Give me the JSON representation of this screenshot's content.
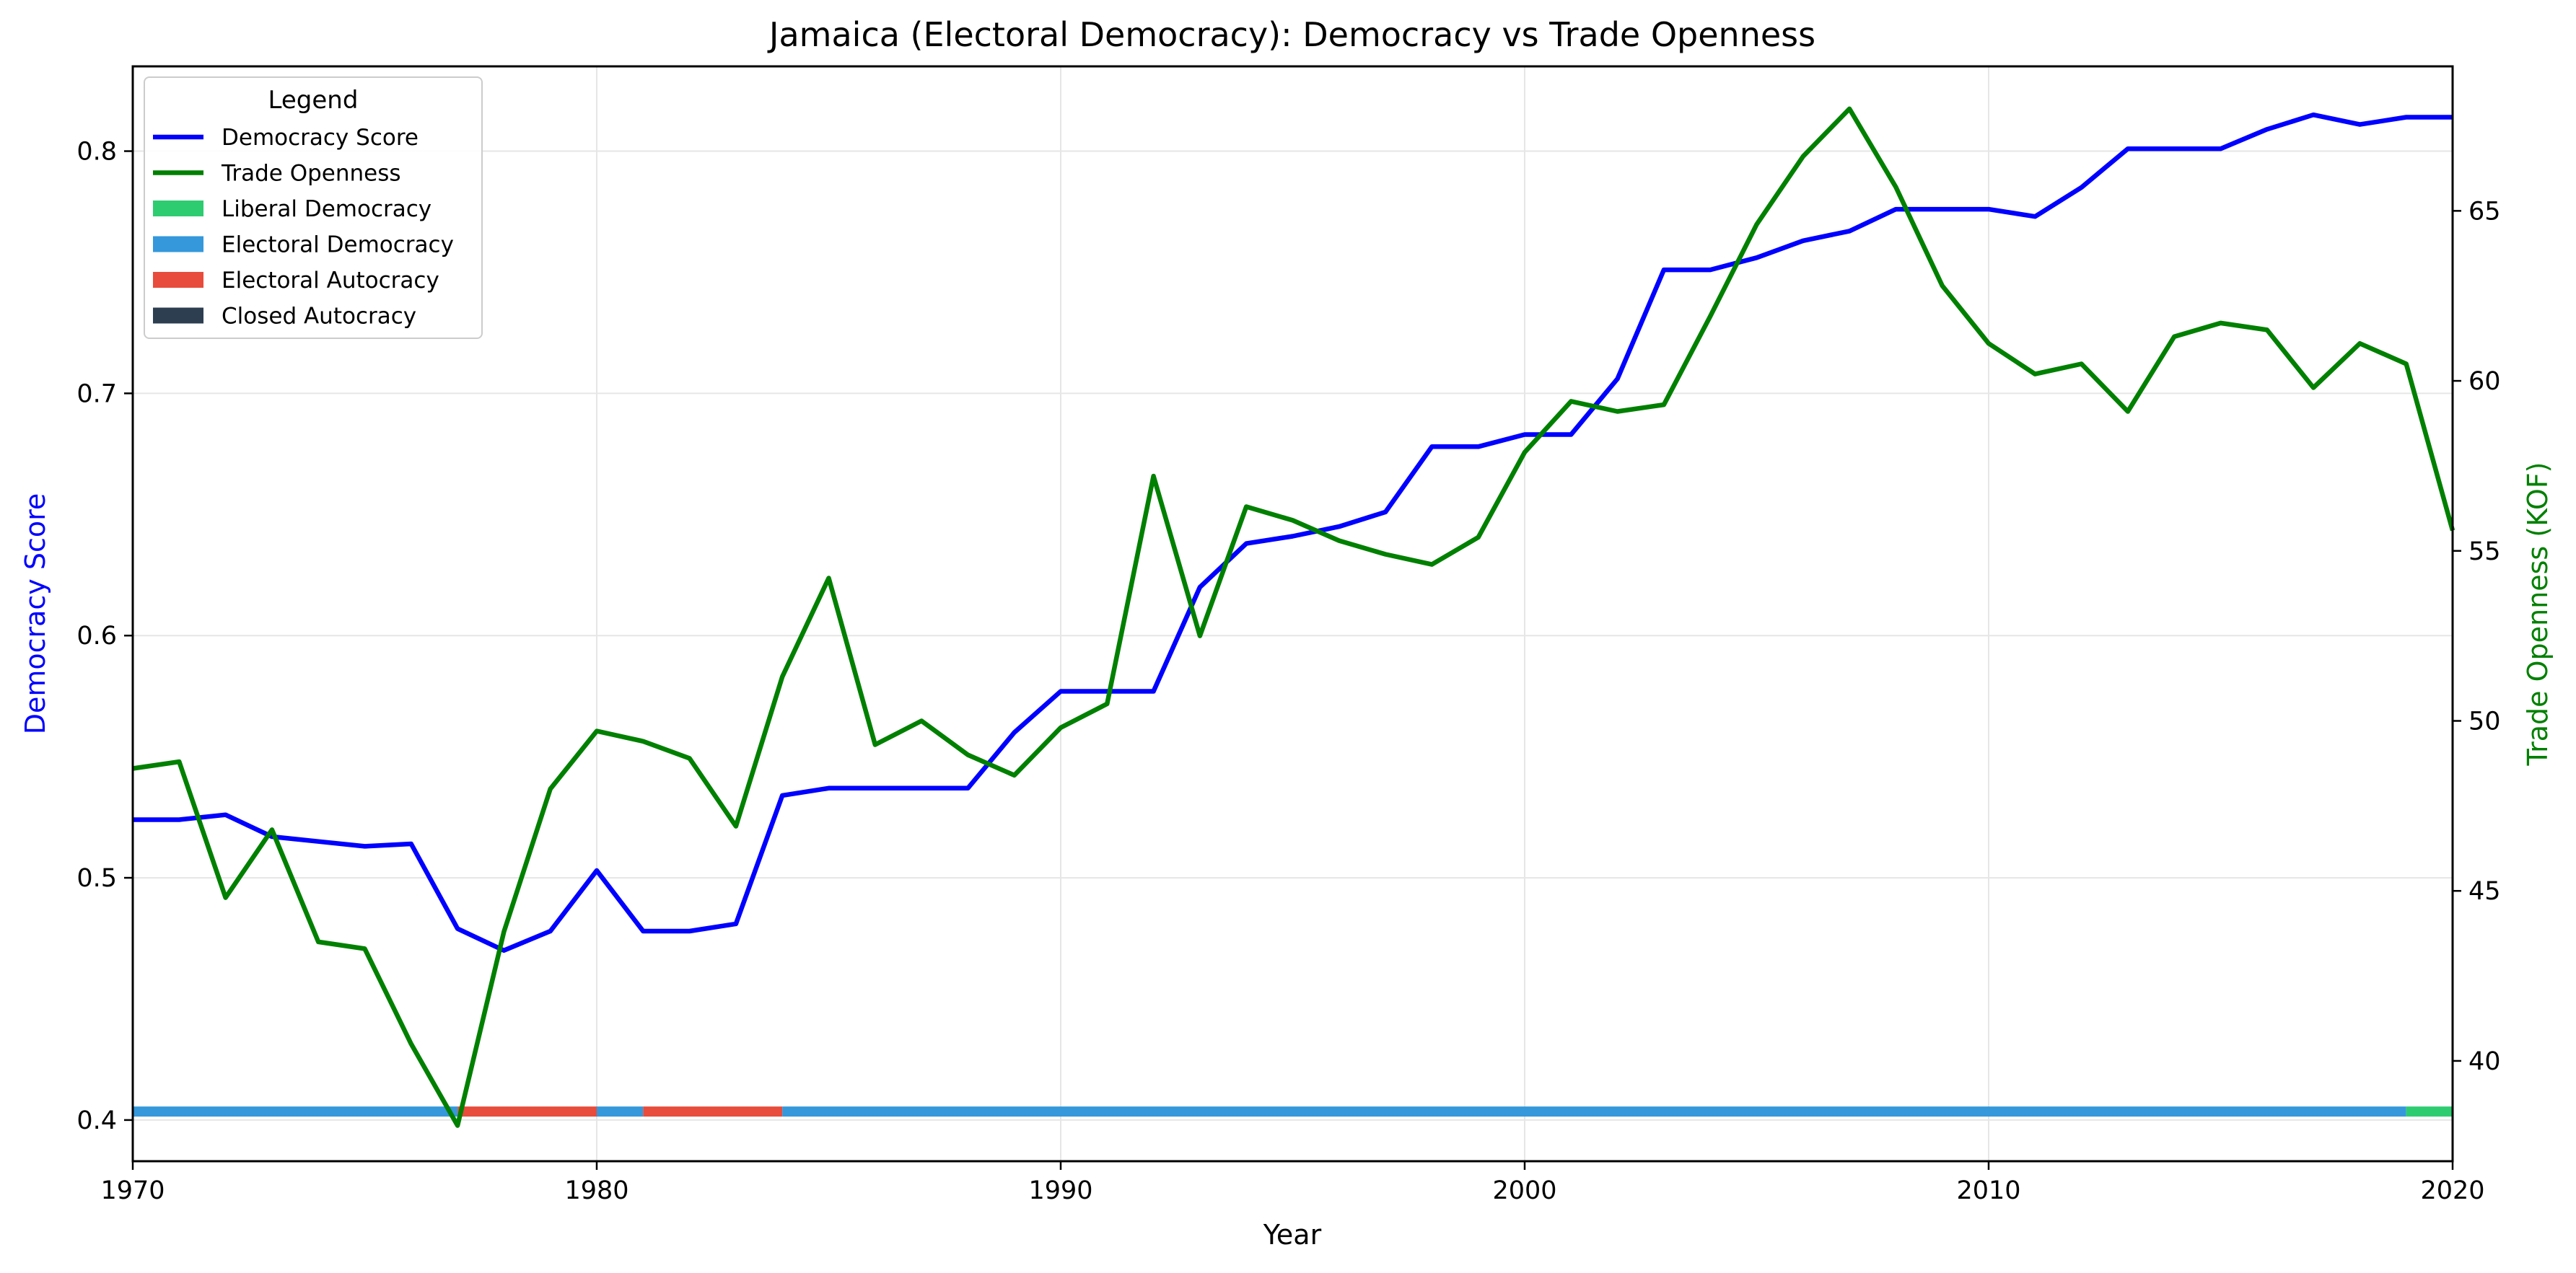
{
  "chart_data": {
    "type": "line",
    "title": "Jamaica (Electoral Democracy): Democracy vs Trade Openness",
    "xlabel": "Year",
    "ylabel": "Democracy Score",
    "y2label": "Trade Openness (KOF)",
    "xlim": [
      1970,
      2020
    ],
    "ylim": [
      0.383,
      0.835
    ],
    "y2lim": [
      37.05,
      69.25
    ],
    "x_ticks": [
      "1970",
      "1980",
      "1990",
      "2000",
      "2010",
      "2020"
    ],
    "y_ticks": [
      "0.4",
      "0.5",
      "0.6",
      "0.7",
      "0.8"
    ],
    "y2_ticks": [
      "40",
      "45",
      "50",
      "55",
      "60",
      "65"
    ],
    "grid": true,
    "legend": {
      "title": "Legend",
      "position": "top-left",
      "entries": [
        {
          "label": "Democracy Score",
          "type": "line",
          "color": "#0000ff"
        },
        {
          "label": "Trade Openness",
          "type": "line",
          "color": "#008000"
        },
        {
          "label": "Liberal Democracy",
          "type": "patch",
          "color": "#2ecc71"
        },
        {
          "label": "Electoral Democracy",
          "type": "patch",
          "color": "#3498db"
        },
        {
          "label": "Electoral Autocracy",
          "type": "patch",
          "color": "#e74c3c"
        },
        {
          "label": "Closed Autocracy",
          "type": "patch",
          "color": "#2c3e50"
        }
      ]
    },
    "x": [
      1970,
      1971,
      1972,
      1973,
      1974,
      1975,
      1976,
      1977,
      1978,
      1979,
      1980,
      1981,
      1982,
      1983,
      1984,
      1985,
      1986,
      1987,
      1988,
      1989,
      1990,
      1991,
      1992,
      1993,
      1994,
      1995,
      1996,
      1997,
      1998,
      1999,
      2000,
      2001,
      2002,
      2003,
      2004,
      2005,
      2006,
      2007,
      2008,
      2009,
      2010,
      2011,
      2012,
      2013,
      2014,
      2015,
      2016,
      2017,
      2018,
      2019,
      2020
    ],
    "series": [
      {
        "name": "Democracy Score",
        "axis": "left",
        "color": "#0000ff",
        "values": [
          0.524,
          0.524,
          0.526,
          0.517,
          0.515,
          0.513,
          0.514,
          0.479,
          0.47,
          0.478,
          0.503,
          0.478,
          0.478,
          0.481,
          0.534,
          0.537,
          0.537,
          0.537,
          0.537,
          0.56,
          0.577,
          0.577,
          0.577,
          0.62,
          0.638,
          0.641,
          0.645,
          0.651,
          0.678,
          0.678,
          0.683,
          0.683,
          0.706,
          0.751,
          0.751,
          0.756,
          0.763,
          0.767,
          0.776,
          0.776,
          0.776,
          0.773,
          0.785,
          0.801,
          0.801,
          0.801,
          0.809,
          0.815,
          0.811,
          0.814,
          0.814
        ]
      },
      {
        "name": "Trade Openness",
        "axis": "right",
        "color": "#008000",
        "values": [
          48.6,
          48.8,
          44.8,
          46.8,
          43.5,
          43.3,
          40.5,
          38.1,
          43.8,
          48.0,
          49.7,
          49.4,
          48.9,
          46.9,
          51.3,
          54.2,
          49.3,
          50.0,
          49.0,
          48.4,
          49.8,
          50.5,
          57.2,
          52.5,
          56.3,
          55.9,
          55.3,
          54.9,
          54.6,
          55.4,
          57.9,
          59.4,
          59.1,
          59.3,
          61.9,
          64.6,
          66.6,
          68.0,
          65.7,
          62.8,
          61.1,
          60.2,
          60.5,
          59.1,
          61.3,
          61.7,
          61.5,
          59.8,
          61.1,
          60.5,
          55.6
        ]
      }
    ],
    "regime_bar": {
      "value": 0.4035,
      "segments": [
        {
          "start": 1970,
          "end": 1977,
          "regime": "Electoral Democracy",
          "color": "#3498db"
        },
        {
          "start": 1977,
          "end": 1980,
          "regime": "Electoral Autocracy",
          "color": "#e74c3c"
        },
        {
          "start": 1980,
          "end": 1981,
          "regime": "Electoral Democracy",
          "color": "#3498db"
        },
        {
          "start": 1981,
          "end": 1984,
          "regime": "Electoral Autocracy",
          "color": "#e74c3c"
        },
        {
          "start": 1984,
          "end": 2019,
          "regime": "Electoral Democracy",
          "color": "#3498db"
        },
        {
          "start": 2019,
          "end": 2020,
          "regime": "Liberal Democracy",
          "color": "#2ecc71"
        }
      ]
    }
  }
}
